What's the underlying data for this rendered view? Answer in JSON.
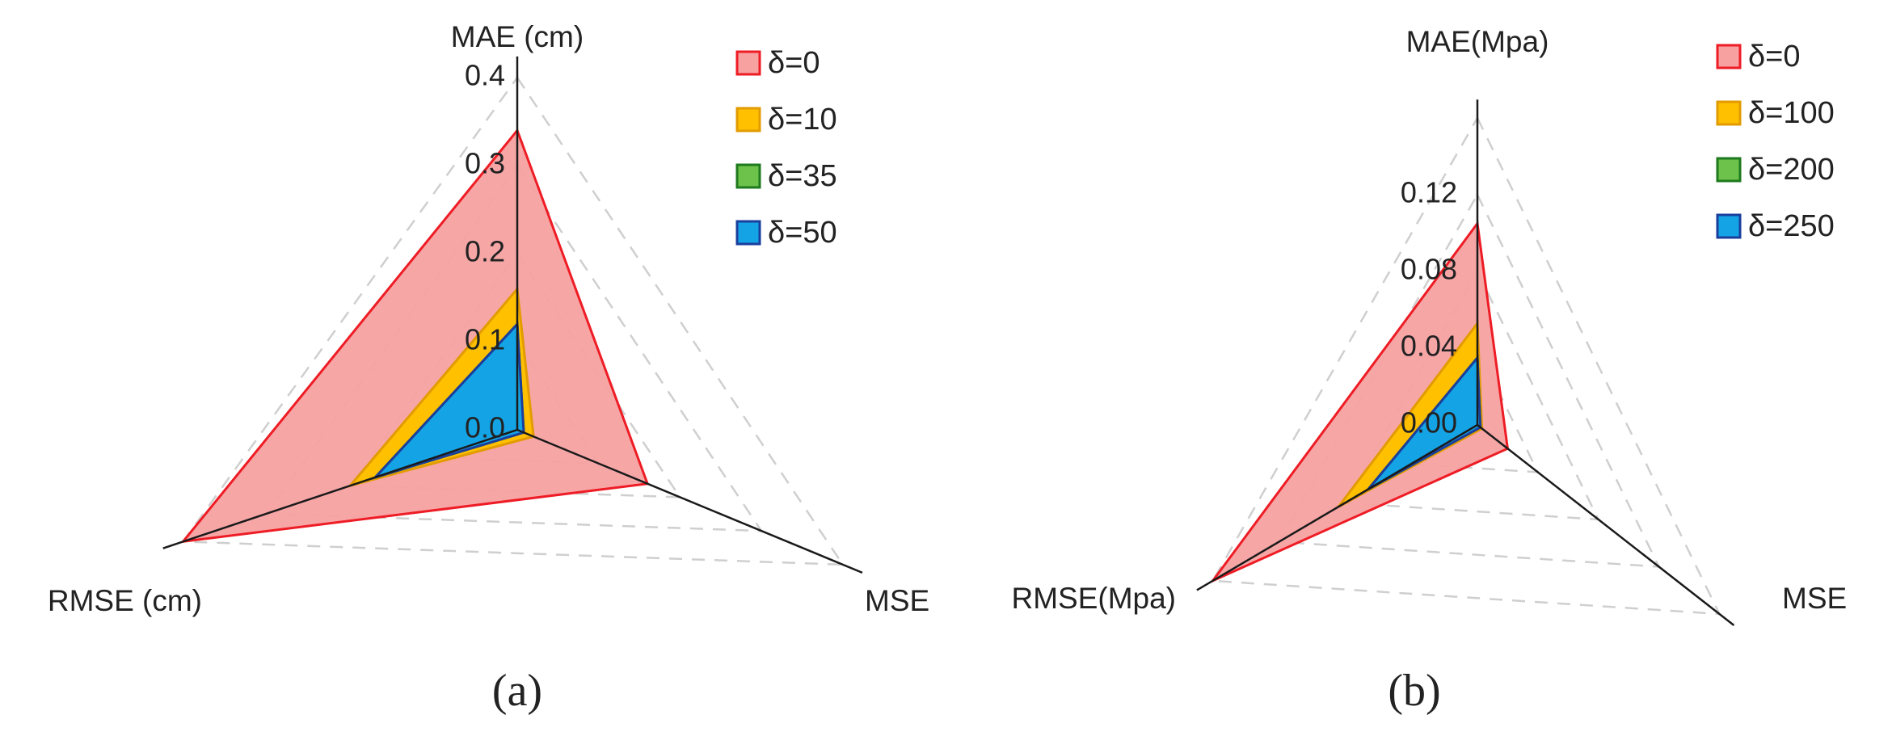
{
  "colors": {
    "red_fill": "#f7a1a1",
    "red_stroke": "#ee1c25",
    "orange_fill": "#ffc000",
    "orange_stroke": "#e29b00",
    "green_fill": "#6cc24a",
    "green_stroke": "#1e7a1e",
    "blue_fill": "#14a4e6",
    "blue_stroke": "#1a3e9c",
    "axis": "#1a1a1a",
    "grid": "#cfcfcf"
  },
  "chart_data": [
    {
      "type": "radar",
      "caption": "(a)",
      "axes": [
        "MAE (cm)",
        "MSE",
        "RMSE (cm)"
      ],
      "ticks": [
        "0.0",
        "0.1",
        "0.2",
        "0.3",
        "0.4"
      ],
      "range": [
        0,
        0.4
      ],
      "grid": true,
      "legend_position": "top-right",
      "series": [
        {
          "name": "δ=0",
          "color": "red",
          "values": [
            0.34,
            0.16,
            0.4
          ]
        },
        {
          "name": "δ=10",
          "color": "orange",
          "values": [
            0.16,
            0.02,
            0.2
          ]
        },
        {
          "name": "δ=35",
          "color": "green",
          "values": [
            0.12,
            0.008,
            0.17
          ]
        },
        {
          "name": "δ=50",
          "color": "blue",
          "values": [
            0.12,
            0.008,
            0.17
          ]
        }
      ]
    },
    {
      "type": "radar",
      "caption": "(b)",
      "axes": [
        "MAE(Mpa)",
        "MSE",
        "RMSE(Mpa)"
      ],
      "ticks": [
        "0.00",
        "0.04",
        "0.08",
        "0.12"
      ],
      "range": [
        0,
        0.16
      ],
      "grid": true,
      "legend_position": "top-right",
      "series": [
        {
          "name": "δ=0",
          "color": "red",
          "values": [
            0.105,
            0.02,
            0.16
          ]
        },
        {
          "name": "δ=100",
          "color": "orange",
          "values": [
            0.053,
            0.003,
            0.084
          ]
        },
        {
          "name": "δ=200",
          "color": "green",
          "values": [
            0.035,
            0.002,
            0.066
          ]
        },
        {
          "name": "δ=250",
          "color": "blue",
          "values": [
            0.035,
            0.002,
            0.066
          ]
        }
      ]
    }
  ]
}
